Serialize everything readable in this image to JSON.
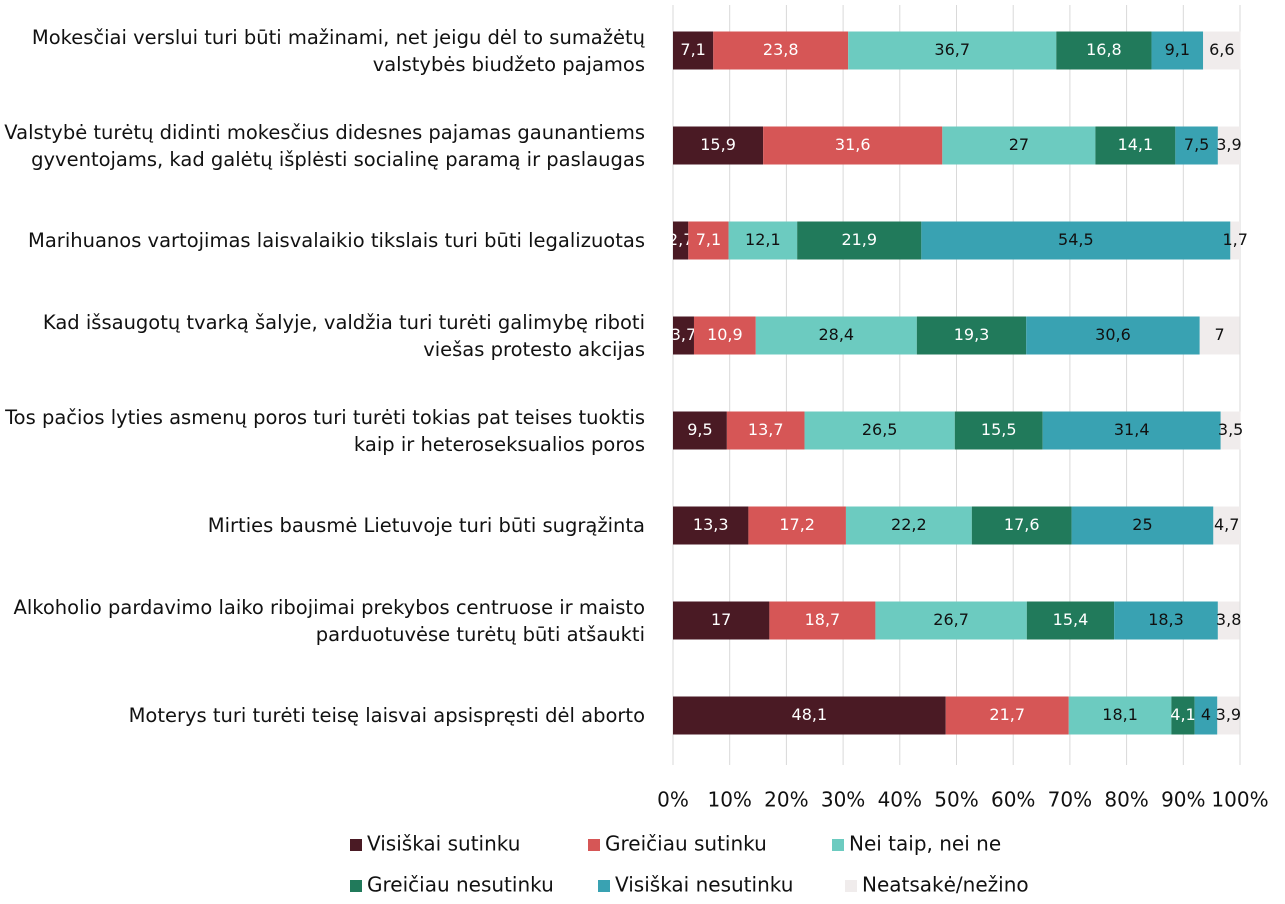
{
  "chart_data": {
    "type": "stacked-bar-horizontal",
    "categories": [
      "Mokesčiai verslui turi būti mažinami, net jeigu dėl to sumažėtų valstybės biudžeto pajamos",
      "Valstybė turėtų didinti mokesčius didesnes pajamas gaunantiems gyventojams, kad galėtų išplėsti socialinę paramą ir paslaugas",
      "Marihuanos vartojimas laisvalaikio tikslais turi būti legalizuotas",
      "Kad išsaugotų tvarką šalyje, valdžia turi turėti galimybę riboti viešas protesto akcijas",
      "Tos pačios lyties asmenų poros turi turėti tokias pat teises tuoktis kaip ir heteroseksualios poros",
      "Mirties bausmė Lietuvoje turi būti sugrąžinta",
      "Alkoholio pardavimo laiko ribojimai prekybos centruose ir maisto parduotuvėse turėtų būti atšaukti",
      "Moterys turi turėti teisę laisvai apsispręsti dėl aborto"
    ],
    "series": [
      {
        "name": "Visiškai sutinku",
        "color": "#4a1a24",
        "values": [
          7.1,
          15.9,
          2.7,
          3.7,
          9.5,
          13.3,
          17,
          48.1
        ],
        "value_labels": [
          "7,1",
          "15,9",
          "2,7",
          "3,7",
          "9,5",
          "13,3",
          "17",
          "48,1"
        ]
      },
      {
        "name": "Greičiau sutinku",
        "color": "#d65656",
        "values": [
          23.8,
          31.6,
          7.1,
          10.9,
          13.7,
          17.2,
          18.7,
          21.7
        ],
        "value_labels": [
          "23,8",
          "31,6",
          "7,1",
          "10,9",
          "13,7",
          "17,2",
          "18,7",
          "21,7"
        ]
      },
      {
        "name": "Nei taip, nei ne",
        "color": "#6ccbc0",
        "values": [
          36.7,
          27,
          12.1,
          28.4,
          26.5,
          22.2,
          26.7,
          18.1
        ],
        "value_labels": [
          "36,7",
          "27",
          "12,1",
          "28,4",
          "26,5",
          "22,2",
          "26,7",
          "18,1"
        ]
      },
      {
        "name": "Greičiau nesutinku",
        "color": "#217a5b",
        "values": [
          16.8,
          14.1,
          21.9,
          19.3,
          15.5,
          17.6,
          15.4,
          4.1
        ],
        "value_labels": [
          "16,8",
          "14,1",
          "21,9",
          "19,3",
          "15,5",
          "17,6",
          "15,4",
          "4,1"
        ]
      },
      {
        "name": "Visiškai nesutinku",
        "color": "#39a2b2",
        "values": [
          9.1,
          7.5,
          54.5,
          30.6,
          31.4,
          25,
          18.3,
          4
        ],
        "value_labels": [
          "9,1",
          "7,5",
          "54,5",
          "30,6",
          "31,4",
          "25",
          "18,3",
          "4"
        ]
      },
      {
        "name": "Neatsakė/nežino",
        "color": "#f0ecec",
        "values": [
          6.6,
          3.9,
          1.7,
          7,
          3.5,
          4.7,
          3.8,
          3.9
        ],
        "value_labels": [
          "6,6",
          "3,9",
          "1,7",
          "7",
          "3,5",
          "4,7",
          "3,8",
          "3,9"
        ]
      }
    ],
    "xlim": [
      0,
      100
    ],
    "xticks": [
      {
        "value": 0,
        "label": "0%"
      },
      {
        "value": 10,
        "label": "10%"
      },
      {
        "value": 20,
        "label": "20%"
      },
      {
        "value": 30,
        "label": "30%"
      },
      {
        "value": 40,
        "label": "40%"
      },
      {
        "value": 50,
        "label": "50%"
      },
      {
        "value": 60,
        "label": "60%"
      },
      {
        "value": 70,
        "label": "70%"
      },
      {
        "value": 80,
        "label": "80%"
      },
      {
        "value": 90,
        "label": "90%"
      },
      {
        "value": 100,
        "label": "100%"
      }
    ],
    "grid": true
  }
}
